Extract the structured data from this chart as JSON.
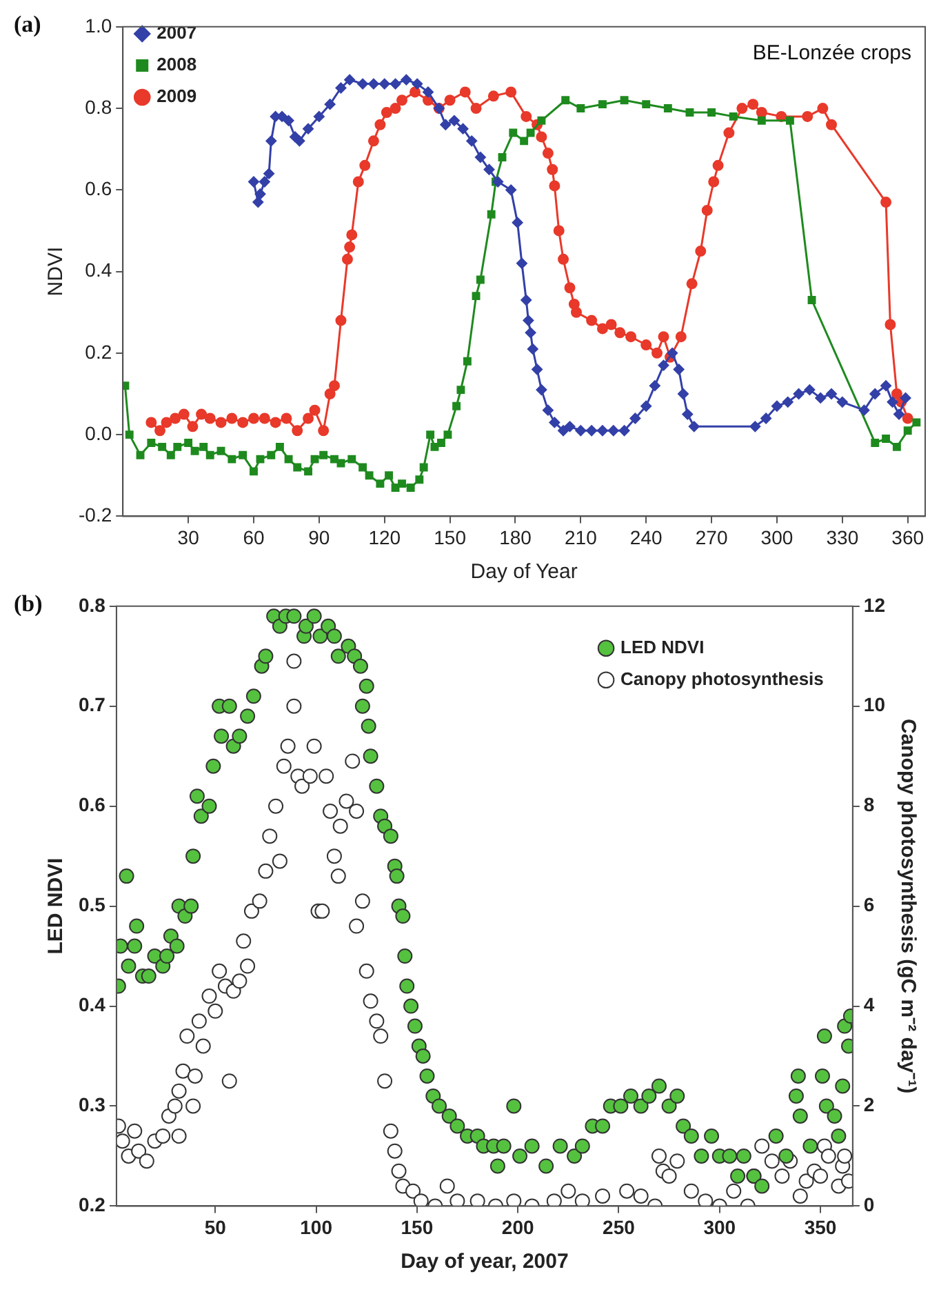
{
  "chart_data": [
    {
      "type": "line",
      "annotations": [
        "(a)",
        "BE-Lonzée crops"
      ],
      "xlabel": "Day of Year",
      "ylabel": "NDVI",
      "xlim": [
        0,
        368
      ],
      "xticks": [
        30,
        60,
        90,
        120,
        150,
        180,
        210,
        240,
        270,
        300,
        330,
        360
      ],
      "ylim": [
        -0.2,
        1.0
      ],
      "yticks": [
        -0.2,
        {
          "value": 0,
          "label": "0.0"
        },
        0.2,
        0.4,
        0.6,
        0.8,
        {
          "value": 1,
          "label": "1.0"
        }
      ],
      "grid": false,
      "legend": "top left",
      "line_style": "solid",
      "series": [
        {
          "name": "2007",
          "color": "#3340a8",
          "marker": "diamond",
          "x": [
            60,
            62,
            63,
            65,
            67,
            68,
            70,
            73,
            76,
            79,
            81,
            85,
            90,
            95,
            100,
            104,
            110,
            115,
            120,
            125,
            130,
            135,
            140,
            145,
            148,
            152,
            156,
            160,
            164,
            168,
            172,
            178,
            181,
            183,
            185,
            186,
            187,
            188,
            190,
            192,
            195,
            198,
            202,
            205,
            210,
            215,
            220,
            225,
            230,
            235,
            240,
            244,
            248,
            252,
            255,
            257,
            259,
            262,
            290,
            295,
            300,
            305,
            310,
            315,
            320,
            325,
            330,
            340,
            345,
            350,
            353,
            356,
            359
          ],
          "values": [
            0.62,
            0.57,
            0.59,
            0.62,
            0.64,
            0.72,
            0.78,
            0.78,
            0.77,
            0.73,
            0.72,
            0.75,
            0.78,
            0.81,
            0.85,
            0.87,
            0.86,
            0.86,
            0.86,
            0.86,
            0.87,
            0.86,
            0.84,
            0.8,
            0.76,
            0.77,
            0.75,
            0.72,
            0.68,
            0.65,
            0.62,
            0.6,
            0.52,
            0.42,
            0.33,
            0.28,
            0.25,
            0.21,
            0.16,
            0.11,
            0.06,
            0.03,
            0.01,
            0.02,
            0.01,
            0.01,
            0.01,
            0.01,
            0.01,
            0.04,
            0.07,
            0.12,
            0.17,
            0.2,
            0.16,
            0.1,
            0.05,
            0.02,
            0.02,
            0.04,
            0.07,
            0.08,
            0.1,
            0.11,
            0.09,
            0.1,
            0.08,
            0.06,
            0.1,
            0.12,
            0.08,
            0.05,
            0.09
          ]
        },
        {
          "name": "2008",
          "color": "#1e8a1e",
          "marker": "square",
          "x": [
            1,
            3,
            8,
            13,
            18,
            22,
            25,
            30,
            33,
            37,
            40,
            45,
            50,
            55,
            60,
            63,
            68,
            72,
            76,
            80,
            85,
            88,
            92,
            97,
            100,
            105,
            110,
            113,
            118,
            122,
            125,
            128,
            132,
            136,
            138,
            141,
            143,
            146,
            149,
            153,
            155,
            158,
            162,
            164,
            169,
            171,
            174,
            179,
            184,
            187,
            192,
            203,
            210,
            220,
            230,
            240,
            250,
            260,
            270,
            280,
            293,
            306,
            316,
            345,
            350,
            355,
            360,
            364
          ],
          "values": [
            0.12,
            0.0,
            -0.05,
            -0.02,
            -0.03,
            -0.05,
            -0.03,
            -0.02,
            -0.04,
            -0.03,
            -0.05,
            -0.04,
            -0.06,
            -0.05,
            -0.09,
            -0.06,
            -0.05,
            -0.03,
            -0.06,
            -0.08,
            -0.09,
            -0.06,
            -0.05,
            -0.06,
            -0.07,
            -0.06,
            -0.08,
            -0.1,
            -0.12,
            -0.1,
            -0.13,
            -0.12,
            -0.13,
            -0.11,
            -0.08,
            0.0,
            -0.03,
            -0.02,
            0.0,
            0.07,
            0.11,
            0.18,
            0.34,
            0.38,
            0.54,
            0.62,
            0.68,
            0.74,
            0.72,
            0.74,
            0.77,
            0.82,
            0.8,
            0.81,
            0.82,
            0.81,
            0.8,
            0.79,
            0.79,
            0.78,
            0.77,
            0.77,
            0.33,
            -0.02,
            -0.01,
            -0.03,
            0.01,
            0.03
          ]
        },
        {
          "name": "2009",
          "color": "#e8392a",
          "marker": "circle",
          "x": [
            13,
            17,
            20,
            24,
            28,
            32,
            36,
            40,
            45,
            50,
            55,
            60,
            65,
            70,
            75,
            80,
            85,
            88,
            92,
            95,
            97,
            100,
            103,
            104,
            105,
            108,
            111,
            115,
            118,
            121,
            125,
            128,
            134,
            140,
            145,
            150,
            157,
            162,
            170,
            178,
            185,
            190,
            192,
            195,
            197,
            198,
            200,
            202,
            205,
            207,
            208,
            215,
            220,
            224,
            228,
            233,
            240,
            245,
            248,
            251,
            256,
            261,
            265,
            268,
            271,
            273,
            278,
            284,
            289,
            293,
            302,
            314,
            321,
            325,
            350,
            352,
            355,
            357,
            360
          ],
          "values": [
            0.03,
            0.01,
            0.03,
            0.04,
            0.05,
            0.02,
            0.05,
            0.04,
            0.03,
            0.04,
            0.03,
            0.04,
            0.04,
            0.03,
            0.04,
            0.01,
            0.04,
            0.06,
            0.01,
            0.1,
            0.12,
            0.28,
            0.43,
            0.46,
            0.49,
            0.62,
            0.66,
            0.72,
            0.76,
            0.79,
            0.8,
            0.82,
            0.84,
            0.82,
            0.8,
            0.82,
            0.84,
            0.8,
            0.83,
            0.84,
            0.78,
            0.76,
            0.73,
            0.69,
            0.65,
            0.61,
            0.5,
            0.43,
            0.36,
            0.32,
            0.3,
            0.28,
            0.26,
            0.27,
            0.25,
            0.24,
            0.22,
            0.2,
            0.24,
            0.19,
            0.24,
            0.37,
            0.45,
            0.55,
            0.62,
            0.66,
            0.74,
            0.8,
            0.81,
            0.79,
            0.78,
            0.78,
            0.8,
            0.76,
            0.57,
            0.27,
            0.1,
            0.08,
            0.04
          ]
        }
      ]
    },
    {
      "type": "scatter",
      "annotations": [
        "(b)"
      ],
      "xlabel": "Day of year, 2007",
      "ylabel": "LED NDVI",
      "y2label": "Canopy photosynthesis (gC m⁻² day⁻¹)",
      "xlim": [
        1,
        366
      ],
      "xticks": [
        50,
        100,
        150,
        200,
        250,
        300,
        350
      ],
      "ylim": [
        0.2,
        0.8
      ],
      "yticks": [
        0.2,
        0.3,
        0.4,
        0.5,
        0.6,
        0.7,
        0.8
      ],
      "y2lim": [
        0,
        12
      ],
      "y2ticks": [
        0,
        2,
        4,
        6,
        8,
        10,
        12
      ],
      "grid": false,
      "legend": "top right",
      "marker": "circle",
      "series": [
        {
          "name": "LED NDVI",
          "color": "#55c23f",
          "x": [
            2,
            3,
            6,
            7,
            10,
            11,
            14,
            17,
            20,
            24,
            26,
            28,
            31,
            32,
            35,
            38,
            39,
            41,
            43,
            47,
            49,
            52,
            53,
            57,
            59,
            62,
            66,
            69,
            73,
            75,
            79,
            82,
            85,
            89,
            94,
            95,
            99,
            102,
            106,
            109,
            111,
            116,
            119,
            122,
            123,
            125,
            126,
            127,
            130,
            132,
            134,
            137,
            139,
            140,
            141,
            143,
            144,
            145,
            147,
            149,
            151,
            153,
            155,
            158,
            161,
            166,
            170,
            175,
            180,
            183,
            188,
            190,
            193,
            198,
            201,
            207,
            214,
            221,
            228,
            232,
            237,
            242,
            246,
            251,
            256,
            261,
            265,
            270,
            275,
            279,
            282,
            286,
            291,
            296,
            300,
            305,
            309,
            312,
            317,
            321,
            328,
            333,
            338,
            339,
            340,
            345,
            351,
            352,
            353,
            357,
            359,
            361,
            362,
            364,
            365
          ],
          "values": [
            0.42,
            0.46,
            0.53,
            0.44,
            0.46,
            0.48,
            0.43,
            0.43,
            0.45,
            0.44,
            0.45,
            0.47,
            0.46,
            0.5,
            0.49,
            0.5,
            0.55,
            0.61,
            0.59,
            0.6,
            0.64,
            0.7,
            0.67,
            0.7,
            0.66,
            0.67,
            0.69,
            0.71,
            0.74,
            0.75,
            0.79,
            0.78,
            0.79,
            0.79,
            0.77,
            0.78,
            0.79,
            0.77,
            0.78,
            0.77,
            0.75,
            0.76,
            0.75,
            0.74,
            0.7,
            0.72,
            0.68,
            0.65,
            0.62,
            0.59,
            0.58,
            0.57,
            0.54,
            0.53,
            0.5,
            0.49,
            0.45,
            0.42,
            0.4,
            0.38,
            0.36,
            0.35,
            0.33,
            0.31,
            0.3,
            0.29,
            0.28,
            0.27,
            0.27,
            0.26,
            0.26,
            0.24,
            0.26,
            0.3,
            0.25,
            0.26,
            0.24,
            0.26,
            0.25,
            0.26,
            0.28,
            0.28,
            0.3,
            0.3,
            0.31,
            0.3,
            0.31,
            0.32,
            0.3,
            0.31,
            0.28,
            0.27,
            0.25,
            0.27,
            0.25,
            0.25,
            0.23,
            0.25,
            0.23,
            0.22,
            0.27,
            0.25,
            0.31,
            0.33,
            0.29,
            0.26,
            0.33,
            0.37,
            0.3,
            0.29,
            0.27,
            0.32,
            0.38,
            0.36,
            0.39
          ]
        },
        {
          "name": "Canopy photosynthesis",
          "color": "#ffffff",
          "axis": "y2",
          "x": [
            2,
            4,
            7,
            10,
            12,
            16,
            20,
            24,
            27,
            30,
            32,
            32,
            34,
            36,
            39,
            40,
            42,
            44,
            47,
            50,
            52,
            55,
            57,
            59,
            62,
            64,
            66,
            68,
            72,
            75,
            77,
            80,
            82,
            84,
            86,
            89,
            89,
            91,
            93,
            97,
            99,
            101,
            103,
            105,
            107,
            109,
            111,
            112,
            115,
            118,
            120,
            120,
            123,
            125,
            127,
            130,
            132,
            134,
            137,
            139,
            141,
            143,
            148,
            152,
            159,
            165,
            170,
            180,
            189,
            198,
            207,
            218,
            225,
            232,
            242,
            254,
            261,
            268,
            270,
            272,
            275,
            279,
            286,
            293,
            300,
            307,
            314,
            317,
            321,
            326,
            331,
            335,
            340,
            343,
            347,
            350,
            352,
            354,
            359,
            361,
            362,
            364
          ],
          "values": [
            1.6,
            1.3,
            1.0,
            1.5,
            1.1,
            0.9,
            1.3,
            1.4,
            1.8,
            2.0,
            1.4,
            2.3,
            2.7,
            3.4,
            2.0,
            2.6,
            3.7,
            3.2,
            4.2,
            3.9,
            4.7,
            4.4,
            2.5,
            4.3,
            4.5,
            5.3,
            4.8,
            5.9,
            6.1,
            6.7,
            7.4,
            8.0,
            6.9,
            8.8,
            9.2,
            10.0,
            10.9,
            8.6,
            8.4,
            8.6,
            9.2,
            5.9,
            5.9,
            8.6,
            7.9,
            7.0,
            6.6,
            7.6,
            8.1,
            8.9,
            7.9,
            5.6,
            6.1,
            4.7,
            4.1,
            3.7,
            3.4,
            2.5,
            1.5,
            1.1,
            0.7,
            0.4,
            0.3,
            0.1,
            0.0,
            0.4,
            0.1,
            0.1,
            0.0,
            0.1,
            0.0,
            0.1,
            0.3,
            0.1,
            0.2,
            0.3,
            0.2,
            0.0,
            1.0,
            0.7,
            0.6,
            0.9,
            0.3,
            0.1,
            0.0,
            0.3,
            0.0,
            0.6,
            1.2,
            0.9,
            0.6,
            0.9,
            0.2,
            0.5,
            0.7,
            0.6,
            1.2,
            1.0,
            0.4,
            0.8,
            1.0,
            0.5
          ]
        }
      ]
    }
  ]
}
